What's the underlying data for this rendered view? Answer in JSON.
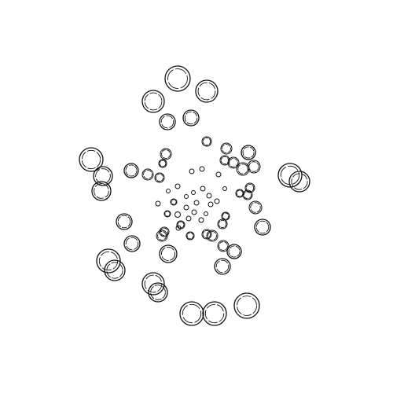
{
  "background_color": "#ffffff",
  "stroke_color": "#111111"
}
